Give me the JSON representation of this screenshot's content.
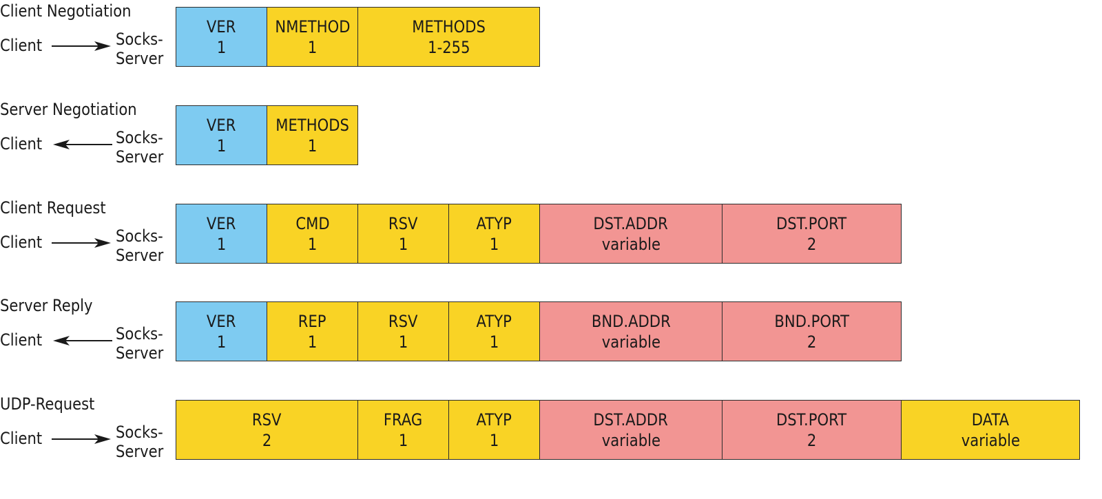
{
  "colors": {
    "version": "#7ecbf1",
    "header": "#f9d325",
    "address": "#f29593"
  },
  "labels": {
    "client": "Client",
    "server_line1": "Socks-",
    "server_line2": "Server"
  },
  "sections": [
    {
      "title": "Client Negotiation",
      "direction": "to-server",
      "fields": [
        {
          "name": "VER",
          "size": "1",
          "color": "blue"
        },
        {
          "name": "NMETHOD",
          "size": "1",
          "color": "yellow"
        },
        {
          "name": "METHODS",
          "size": "1-255",
          "color": "yellow"
        }
      ]
    },
    {
      "title": "Server Negotiation",
      "direction": "to-client",
      "fields": [
        {
          "name": "VER",
          "size": "1",
          "color": "blue"
        },
        {
          "name": "METHODS",
          "size": "1",
          "color": "yellow"
        }
      ]
    },
    {
      "title": "Client Request",
      "direction": "to-server",
      "fields": [
        {
          "name": "VER",
          "size": "1",
          "color": "blue"
        },
        {
          "name": "CMD",
          "size": "1",
          "color": "yellow"
        },
        {
          "name": "RSV",
          "size": "1",
          "color": "yellow"
        },
        {
          "name": "ATYP",
          "size": "1",
          "color": "yellow"
        },
        {
          "name": "DST.ADDR",
          "size": "variable",
          "color": "red"
        },
        {
          "name": "DST.PORT",
          "size": "2",
          "color": "red"
        }
      ]
    },
    {
      "title": "Server Reply",
      "direction": "to-client",
      "fields": [
        {
          "name": "VER",
          "size": "1",
          "color": "blue"
        },
        {
          "name": "REP",
          "size": "1",
          "color": "yellow"
        },
        {
          "name": "RSV",
          "size": "1",
          "color": "yellow"
        },
        {
          "name": "ATYP",
          "size": "1",
          "color": "yellow"
        },
        {
          "name": "BND.ADDR",
          "size": "variable",
          "color": "red"
        },
        {
          "name": "BND.PORT",
          "size": "2",
          "color": "red"
        }
      ]
    },
    {
      "title": "UDP-Request",
      "direction": "to-server",
      "fields": [
        {
          "name": "RSV",
          "size": "2",
          "color": "yellow"
        },
        {
          "name": "FRAG",
          "size": "1",
          "color": "yellow"
        },
        {
          "name": "ATYP",
          "size": "1",
          "color": "yellow"
        },
        {
          "name": "DST.ADDR",
          "size": "variable",
          "color": "red"
        },
        {
          "name": "DST.PORT",
          "size": "2",
          "color": "red"
        },
        {
          "name": "DATA",
          "size": "variable",
          "color": "yellow"
        }
      ]
    }
  ]
}
